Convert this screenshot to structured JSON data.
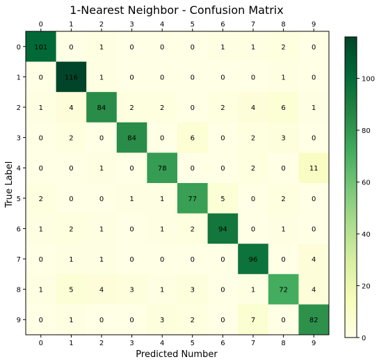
{
  "chart_data": {
    "type": "heatmap",
    "title": "1-Nearest Neighbor - Confusion Matrix",
    "xlabel": "Predicted Number",
    "ylabel": "True Label",
    "x_categories": [
      "0",
      "1",
      "2",
      "3",
      "4",
      "5",
      "6",
      "7",
      "8",
      "9"
    ],
    "y_categories": [
      "0",
      "1",
      "2",
      "3",
      "4",
      "5",
      "6",
      "7",
      "8",
      "9"
    ],
    "x_tick_position": "top-and-bottom",
    "colormap": "YlGn",
    "value_range": [
      0,
      116
    ],
    "colorbar_ticks": [
      "0",
      "20",
      "40",
      "60",
      "80",
      "100"
    ],
    "colorbar_tick_values": [
      0,
      20,
      40,
      60,
      80,
      100
    ],
    "matrix": [
      [
        101,
        0,
        1,
        0,
        0,
        0,
        1,
        1,
        2,
        0
      ],
      [
        0,
        116,
        1,
        0,
        0,
        0,
        0,
        0,
        1,
        0
      ],
      [
        1,
        4,
        84,
        2,
        2,
        0,
        2,
        4,
        6,
        1
      ],
      [
        0,
        2,
        0,
        84,
        0,
        6,
        0,
        2,
        3,
        0
      ],
      [
        0,
        0,
        1,
        0,
        78,
        0,
        0,
        2,
        0,
        11
      ],
      [
        2,
        0,
        0,
        1,
        1,
        77,
        5,
        0,
        2,
        0
      ],
      [
        1,
        2,
        1,
        0,
        1,
        2,
        94,
        0,
        1,
        0
      ],
      [
        0,
        1,
        1,
        0,
        0,
        0,
        0,
        96,
        0,
        4
      ],
      [
        1,
        5,
        4,
        3,
        1,
        3,
        0,
        1,
        72,
        4
      ],
      [
        0,
        1,
        0,
        0,
        3,
        2,
        0,
        7,
        0,
        82
      ]
    ]
  }
}
